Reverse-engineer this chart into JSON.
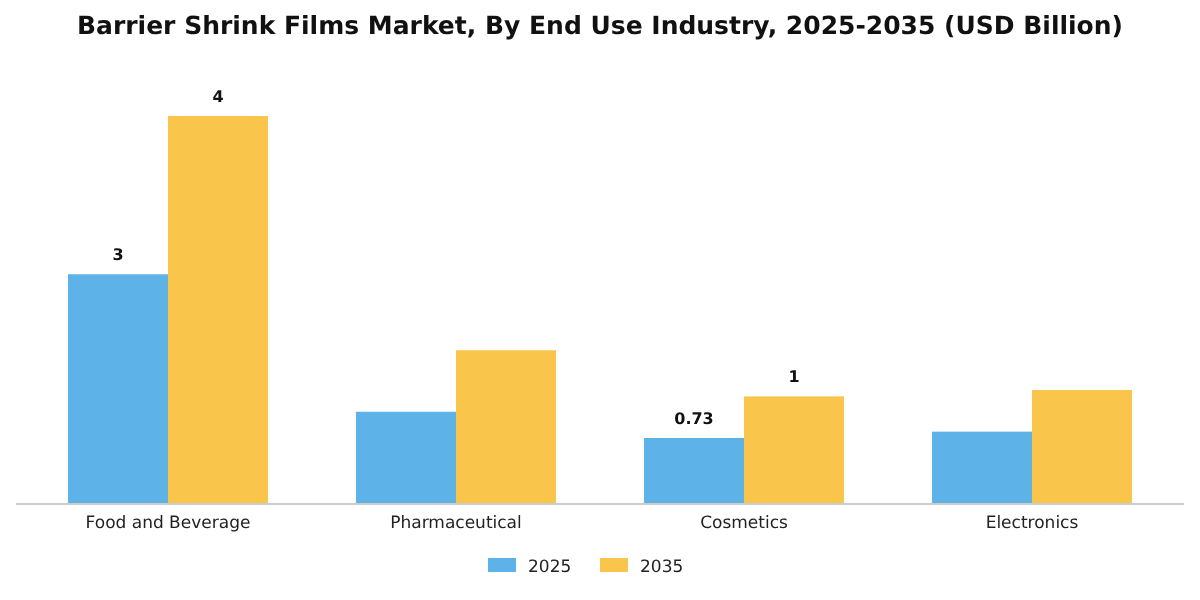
{
  "chart_data": {
    "type": "bar",
    "title": "Barrier Shrink Films Market, By End Use Industry, 2025-2035 (USD Billion)",
    "categories": [
      "Food and Beverage",
      "Pharmaceutical",
      "Cosmetics",
      "Electronics"
    ],
    "series": [
      {
        "name": "2025",
        "color": "#5db3e8",
        "values": [
          2.54,
          1.02,
          0.73,
          0.8
        ],
        "value_labels": [
          "3",
          null,
          "0.73",
          null
        ]
      },
      {
        "name": "2035",
        "color": "#f9c54b",
        "values": [
          4.29,
          1.7,
          1.19,
          1.26
        ],
        "value_labels": [
          "4",
          null,
          "1",
          null
        ]
      }
    ],
    "legend": "bottom"
  }
}
